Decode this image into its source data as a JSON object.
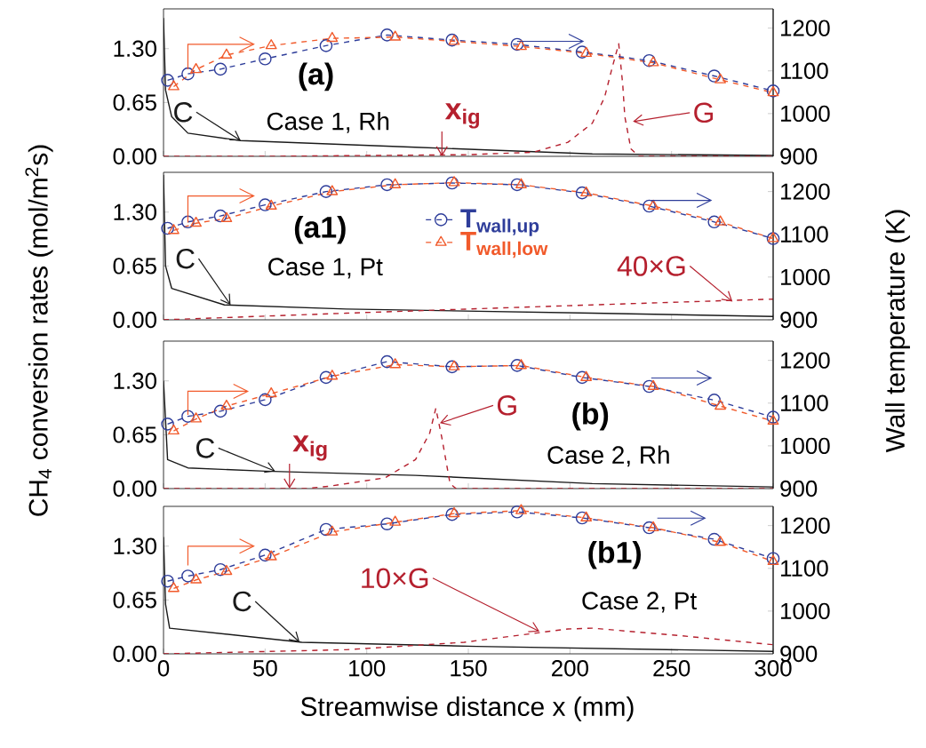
{
  "chart_data": [
    {
      "type": "line",
      "ylabel": "CH$_{4}$ conversion rates (mol/m$^{2}$s)",
      "y2label": "Wall temperature (K)",
      "tick_labels": "y",
      "legend": false,
      "xlim": [
        0,
        300
      ],
      "ylim": [
        0,
        1.78
      ],
      "y2lim": [
        900,
        1245
      ],
      "xticks": [
        0,
        50,
        100,
        150,
        200,
        250,
        300
      ],
      "yticks": [
        {
          "value": 0,
          "label": "0.00"
        },
        {
          "value": 0.65,
          "label": "0.65"
        },
        {
          "value": 1.3,
          "label": "1.30"
        }
      ],
      "y2ticks": [
        900,
        1000,
        1100,
        1200
      ],
      "annotations": [
        "(a)",
        "Case 1, Rh",
        {
          "text": "C",
          "x": 38,
          "y": 0.19
        },
        {
          "text": "x$_{ig}$",
          "x": 137,
          "y": 0
        },
        {
          "text": "G",
          "x": 231,
          "y": 0.42
        }
      ],
      "series": [
        {
          "color": "#1a1a1a",
          "line_style": "solid",
          "marker": "none",
          "x": [
            0,
            1,
            4,
            12,
            38,
            124,
            211,
            300
          ],
          "values": [
            1.67,
            0.8,
            0.48,
            0.28,
            0.19,
            0.11,
            0.03,
            0.01
          ]
        },
        {
          "color": "#b5202e",
          "line_style": "dashed",
          "marker": "none",
          "x": [
            0,
            50,
            100,
            150,
            182,
            199,
            211,
            217,
            221,
            224,
            226,
            227,
            230,
            234,
            300
          ],
          "values": [
            0,
            0,
            0.01,
            0.02,
            0.05,
            0.17,
            0.4,
            0.71,
            1.09,
            1.36,
            0.86,
            0.48,
            0.09,
            0,
            0
          ]
        },
        {
          "axis": "y2",
          "color": "#2e3d9a",
          "line_style": "dashed",
          "marker": "circle",
          "x": [
            2,
            12,
            28,
            50,
            80,
            110,
            142,
            174,
            206,
            239,
            271,
            300
          ],
          "values": [
            1078,
            1093,
            1104,
            1128,
            1159,
            1184,
            1172,
            1162,
            1144,
            1124,
            1088,
            1053
          ]
        },
        {
          "axis": "y2",
          "color": "#f15a2b",
          "line_style": "dashed",
          "marker": "triangle",
          "x": [
            5,
            16,
            31,
            53,
            83,
            114,
            143,
            176,
            208,
            241,
            274,
            300
          ],
          "values": [
            1063,
            1103,
            1137,
            1159,
            1176,
            1179,
            1169,
            1157,
            1141,
            1119,
            1079,
            1049
          ]
        }
      ]
    },
    {
      "type": "line",
      "tick_labels": "y",
      "legend": "top",
      "xlim": [
        0,
        300
      ],
      "ylim": [
        0,
        1.78
      ],
      "y2lim": [
        900,
        1245
      ],
      "xticks": [
        0,
        50,
        100,
        150,
        200,
        250,
        300
      ],
      "yticks": [
        {
          "value": 0,
          "label": "0.00"
        },
        {
          "value": 0.65,
          "label": "0.65"
        },
        {
          "value": 1.3,
          "label": "1.30"
        }
      ],
      "y2ticks": [
        900,
        1000,
        1100,
        1200
      ],
      "annotations": [
        "(a1)",
        "Case 1, Pt",
        {
          "text": "C",
          "x": 33,
          "y": 0.18
        },
        {
          "text": "40×G",
          "x": 280,
          "y": 0.22
        }
      ],
      "series": [
        {
          "color": "#1a1a1a",
          "line_style": "solid",
          "marker": "none",
          "x": [
            0,
            1,
            4,
            30,
            90,
            211,
            300
          ],
          "values": [
            1.75,
            0.65,
            0.38,
            0.18,
            0.13,
            0.08,
            0.04
          ]
        },
        {
          "color": "#b5202e",
          "line_style": "dashed",
          "marker": "none",
          "x": [
            0,
            90,
            150,
            211,
            300
          ],
          "values": [
            0,
            0.08,
            0.13,
            0.18,
            0.25
          ]
        },
        {
          "axis": "y2",
          "name": "T$_{wall,up}$",
          "color": "#2e3d9a",
          "line_style": "dashed",
          "marker": "circle",
          "x": [
            2,
            12,
            28,
            50,
            80,
            110,
            142,
            174,
            206,
            239,
            271,
            300
          ],
          "values": [
            1114,
            1129,
            1143,
            1169,
            1200,
            1216,
            1220,
            1216,
            1197,
            1166,
            1129,
            1090
          ]
        },
        {
          "axis": "y2",
          "name": "T$_{wall,low}$",
          "color": "#f15a2b",
          "line_style": "dashed",
          "marker": "triangle",
          "x": [
            5,
            16,
            31,
            53,
            83,
            114,
            143,
            176,
            208,
            241,
            274,
            300
          ],
          "values": [
            1109,
            1126,
            1137,
            1166,
            1200,
            1216,
            1221,
            1216,
            1197,
            1166,
            1129,
            1090
          ]
        }
      ]
    },
    {
      "type": "line",
      "tick_labels": "y",
      "legend": false,
      "xlim": [
        0,
        300
      ],
      "ylim": [
        0,
        1.78
      ],
      "y2lim": [
        900,
        1245
      ],
      "xticks": [
        0,
        50,
        100,
        150,
        200,
        250,
        300
      ],
      "yticks": [
        {
          "value": 0,
          "label": "0.00"
        },
        {
          "value": 0.65,
          "label": "0.65"
        },
        {
          "value": 1.3,
          "label": "1.30"
        }
      ],
      "y2ticks": [
        900,
        1000,
        1100,
        1200
      ],
      "annotations": [
        "(b)",
        "Case 2, Rh",
        {
          "text": "C",
          "x": 55,
          "y": 0.21
        },
        {
          "text": "x$_{ig}$",
          "x": 62,
          "y": 0
        },
        {
          "text": "G",
          "x": 136,
          "y": 0.79
        }
      ],
      "series": [
        {
          "color": "#1a1a1a",
          "line_style": "solid",
          "marker": "none",
          "x": [
            0,
            2,
            12,
            50,
            124,
            211,
            300
          ],
          "values": [
            1.3,
            0.35,
            0.25,
            0.21,
            0.16,
            0.06,
            0.02
          ]
        },
        {
          "color": "#b5202e",
          "line_style": "dashed",
          "marker": "none",
          "x": [
            0,
            70,
            82,
            109,
            124,
            131,
            134,
            137,
            141,
            144,
            300
          ],
          "values": [
            0,
            0,
            0.03,
            0.13,
            0.35,
            0.67,
            0.97,
            0.61,
            0.06,
            0,
            0
          ]
        },
        {
          "axis": "y2",
          "color": "#2e3d9a",
          "line_style": "dashed",
          "marker": "circle",
          "x": [
            2,
            12,
            28,
            50,
            80,
            110,
            142,
            174,
            206,
            239,
            271,
            300
          ],
          "values": [
            1051,
            1069,
            1081,
            1108,
            1160,
            1197,
            1185,
            1188,
            1160,
            1139,
            1107,
            1067
          ]
        },
        {
          "axis": "y2",
          "color": "#f15a2b",
          "line_style": "dashed",
          "marker": "triangle",
          "x": [
            5,
            16,
            31,
            53,
            83,
            114,
            143,
            176,
            208,
            241,
            274,
            300
          ],
          "values": [
            1035,
            1063,
            1093,
            1122,
            1163,
            1190,
            1185,
            1188,
            1160,
            1139,
            1093,
            1058
          ]
        }
      ]
    },
    {
      "type": "line",
      "xlabel": "Streamwise distance x (mm)",
      "legend": false,
      "xlim": [
        0,
        300
      ],
      "ylim": [
        0,
        1.78
      ],
      "y2lim": [
        900,
        1245
      ],
      "xticks": [
        0,
        50,
        100,
        150,
        200,
        250,
        300
      ],
      "yticks": [
        {
          "value": 0,
          "label": "0.00"
        },
        {
          "value": 0.65,
          "label": "0.65"
        },
        {
          "value": 1.3,
          "label": "1.30"
        }
      ],
      "y2ticks": [
        900,
        1000,
        1100,
        1200
      ],
      "annotations": [
        "(b1)",
        "Case 2, Pt",
        {
          "text": "C",
          "x": 67,
          "y": 0.14
        },
        {
          "text": "10×G",
          "x": 185,
          "y": 0.27
        }
      ],
      "series": [
        {
          "color": "#1a1a1a",
          "line_style": "solid",
          "marker": "none",
          "x": [
            0,
            1,
            3,
            68,
            154,
            300
          ],
          "values": [
            1.41,
            0.6,
            0.31,
            0.14,
            0.09,
            0.03
          ]
        },
        {
          "color": "#b5202e",
          "line_style": "dashed",
          "marker": "none",
          "x": [
            0,
            90,
            148,
            199,
            211,
            254,
            300
          ],
          "values": [
            0,
            0.05,
            0.14,
            0.3,
            0.31,
            0.22,
            0.11
          ]
        },
        {
          "axis": "y2",
          "color": "#2e3d9a",
          "line_style": "dashed",
          "marker": "circle",
          "x": [
            2,
            12,
            28,
            50,
            80,
            110,
            142,
            174,
            206,
            239,
            271,
            300
          ],
          "values": [
            1070,
            1082,
            1097,
            1131,
            1191,
            1204,
            1226,
            1232,
            1218,
            1195,
            1168,
            1123
          ]
        },
        {
          "axis": "y2",
          "color": "#f15a2b",
          "line_style": "dashed",
          "marker": "triangle",
          "x": [
            5,
            16,
            31,
            53,
            83,
            114,
            143,
            176,
            208,
            241,
            274,
            300
          ],
          "values": [
            1053,
            1073,
            1093,
            1127,
            1185,
            1208,
            1228,
            1235,
            1218,
            1195,
            1161,
            1116
          ]
        }
      ]
    }
  ]
}
